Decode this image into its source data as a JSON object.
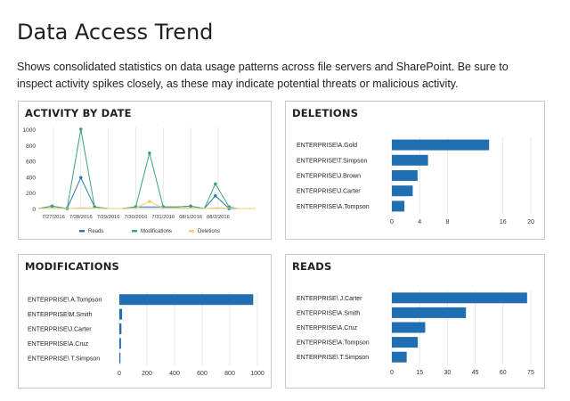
{
  "page": {
    "title": "Data Access Trend",
    "description": "Shows consolidated statistics on data usage patterns across file servers and SharePoint. Be sure to inspect activity spikes closely, as these may indicate potential threats or malicious activity."
  },
  "colors": {
    "reads": "#2e75b6",
    "modifications": "#3aa47c",
    "deletions": "#f2cf6e",
    "bar": "#1f6fb2",
    "grid": "#d9d9d9",
    "border": "#c8c8c8"
  },
  "panels": {
    "activity": {
      "title": "ACTIVITY BY DATE"
    },
    "deletions": {
      "title": "DELETIONS"
    },
    "modifications": {
      "title": "MODIFICATIONS"
    },
    "reads": {
      "title": "READS"
    }
  },
  "chart_data": [
    {
      "id": "activity",
      "type": "line",
      "title": "ACTIVITY BY DATE",
      "ylim": [
        0,
        1000
      ],
      "yticks": [
        "0",
        "200",
        "400",
        "600",
        "800",
        "1000"
      ],
      "x_labels": [
        "7/27/2016",
        "7/28/2016",
        "7/29/2016",
        "7/30/2016",
        "7/31/2016",
        "08/1/2016",
        "08/2/2016"
      ],
      "legend_position": "bottom",
      "series": [
        {
          "name": "Reads",
          "color": "#2e75b6",
          "points": [
            [
              -0.55,
              0
            ],
            [
              -0.05,
              30
            ],
            [
              0.5,
              0
            ],
            [
              1.0,
              390
            ],
            [
              1.5,
              20
            ],
            [
              2.0,
              0
            ],
            [
              2.5,
              0
            ],
            [
              3.0,
              20
            ],
            [
              3.5,
              20
            ],
            [
              4.0,
              20
            ],
            [
              4.5,
              20
            ],
            [
              5.0,
              30
            ],
            [
              5.5,
              0
            ],
            [
              5.9,
              160
            ],
            [
              6.4,
              0
            ],
            [
              6.7,
              0
            ],
            [
              7.3,
              0
            ]
          ],
          "markers": [
            -0.05,
            0.5,
            1.0,
            1.5,
            3.0,
            4.0,
            5.0,
            5.9,
            6.4
          ]
        },
        {
          "name": "Modifications",
          "color": "#3aa47c",
          "points": [
            [
              -0.55,
              0
            ],
            [
              -0.05,
              30
            ],
            [
              0.5,
              0
            ],
            [
              1.0,
              1000
            ],
            [
              1.5,
              20
            ],
            [
              2.0,
              0
            ],
            [
              2.5,
              0
            ],
            [
              3.0,
              20
            ],
            [
              3.5,
              700
            ],
            [
              4.0,
              20
            ],
            [
              4.5,
              20
            ],
            [
              5.0,
              30
            ],
            [
              5.5,
              0
            ],
            [
              5.9,
              310
            ],
            [
              6.4,
              20
            ],
            [
              6.7,
              0
            ],
            [
              7.3,
              0
            ]
          ],
          "markers": [
            -0.05,
            0.5,
            1.0,
            1.5,
            3.0,
            3.5,
            4.0,
            5.0,
            5.9,
            6.4
          ]
        },
        {
          "name": "Deletions",
          "color": "#f2cf6e",
          "points": [
            [
              -0.55,
              0
            ],
            [
              -0.05,
              5
            ],
            [
              0.5,
              0
            ],
            [
              1.0,
              10
            ],
            [
              1.5,
              5
            ],
            [
              2.0,
              0
            ],
            [
              2.5,
              0
            ],
            [
              3.0,
              5
            ],
            [
              3.5,
              90
            ],
            [
              4.0,
              5
            ],
            [
              4.5,
              5
            ],
            [
              5.0,
              5
            ],
            [
              5.5,
              0
            ],
            [
              5.9,
              10
            ],
            [
              6.4,
              5
            ],
            [
              6.7,
              0
            ],
            [
              7.3,
              0
            ]
          ],
          "markers": [
            3.5
          ]
        }
      ]
    },
    {
      "id": "deletions",
      "type": "bar",
      "orientation": "horizontal",
      "title": "DELETIONS",
      "categories": [
        "ENTERPRISE\\A.Gold",
        "ENTERPRISE\\T.Simpson",
        "ENTERPRISE\\J.Brown",
        "ENTERPRISE\\J.Carter",
        "ENTERPRISE\\A.Tompson"
      ],
      "values": [
        14,
        5.2,
        3.7,
        3.0,
        1.8
      ],
      "xlim": [
        0,
        20
      ],
      "xticks": [
        "0",
        "4",
        "8",
        "16",
        "20"
      ],
      "xtick_values": [
        0,
        4,
        8,
        16,
        20
      ]
    },
    {
      "id": "modifications",
      "type": "bar",
      "orientation": "horizontal",
      "title": "MODIFICATIONS",
      "categories": [
        "ENTERPRISE\\ A.Tompson",
        "ENTERPRISE\\M.Smith",
        "ENTERPRISE\\J.Carter",
        "ENTERPRISE\\A.Cruz",
        "ENTERPRISE\\ T.Simpson"
      ],
      "values": [
        970,
        20,
        15,
        12,
        8
      ],
      "xlim": [
        0,
        1000
      ],
      "xticks": [
        "0",
        "200",
        "400",
        "600",
        "800",
        "1000"
      ],
      "xtick_values": [
        0,
        200,
        400,
        600,
        800,
        1000
      ]
    },
    {
      "id": "reads",
      "type": "bar",
      "orientation": "horizontal",
      "title": "READS",
      "categories": [
        "ENTERPRISE\\ J.Carter",
        "ENTERPRISE\\A.Smith",
        "ENTERPRISE\\A.Cruz",
        "ENTERPRISE\\A.Tompson",
        "ENTERPRISE\\ T.Simpson"
      ],
      "values": [
        73,
        40,
        18,
        14,
        8
      ],
      "xlim": [
        0,
        75
      ],
      "xticks": [
        "0",
        "15",
        "30",
        "45",
        "60",
        "75"
      ],
      "xtick_values": [
        0,
        15,
        30,
        45,
        60,
        75
      ]
    }
  ]
}
